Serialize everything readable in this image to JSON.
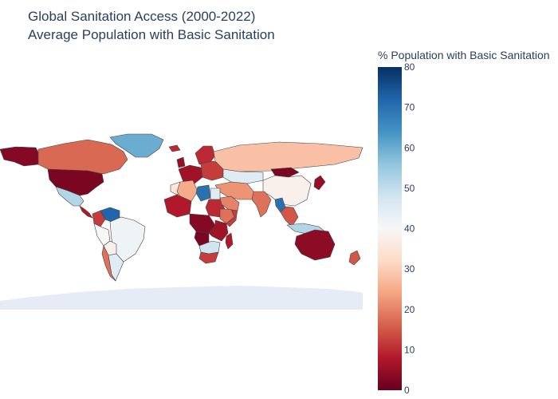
{
  "title": {
    "line1": "Global Sanitation Access (2000-2022)",
    "line2": "Average Population with Basic Sanitation"
  },
  "colorbar": {
    "title": "% Population with Basic Sanitation",
    "min": 0,
    "max": 80,
    "ticks": [
      0,
      10,
      20,
      30,
      40,
      50,
      60,
      70,
      80
    ],
    "colorscale": [
      "#67001f",
      "#b2182b",
      "#d6604d",
      "#f4a582",
      "#fddbc7",
      "#f7f7f7",
      "#d1e5f0",
      "#92c5de",
      "#4393c3",
      "#2166ac",
      "#053061"
    ]
  },
  "map": {
    "projection": "equirectangular",
    "land_color": "#e5ecf6",
    "border_color": "#444444"
  },
  "chart_data": {
    "type": "choropleth",
    "title": "Global Sanitation Access (2000-2022) Average Population with Basic Sanitation",
    "value_label": "% Population with Basic Sanitation",
    "zmin": 0,
    "zmax": 80,
    "regions": [
      {
        "name": "Alaska",
        "value": 3
      },
      {
        "name": "Canada",
        "value": 17
      },
      {
        "name": "United States",
        "value": 2
      },
      {
        "name": "Greenland",
        "value": 60
      },
      {
        "name": "Mexico",
        "value": 52
      },
      {
        "name": "Central America",
        "value": 8
      },
      {
        "name": "Venezuela",
        "value": 72
      },
      {
        "name": "Colombia",
        "value": 12
      },
      {
        "name": "Brazil",
        "value": 42
      },
      {
        "name": "Peru",
        "value": 40
      },
      {
        "name": "Bolivia",
        "value": 38
      },
      {
        "name": "Argentina",
        "value": 45
      },
      {
        "name": "Chile",
        "value": 18
      },
      {
        "name": "Iceland",
        "value": 10
      },
      {
        "name": "Scandinavia",
        "value": 10
      },
      {
        "name": "United Kingdom",
        "value": 5
      },
      {
        "name": "Western Europe",
        "value": 6
      },
      {
        "name": "Eastern Europe",
        "value": 12
      },
      {
        "name": "Russia",
        "value": 28
      },
      {
        "name": "Kazakhstan",
        "value": 45
      },
      {
        "name": "Mongolia",
        "value": 2
      },
      {
        "name": "China",
        "value": 38
      },
      {
        "name": "India",
        "value": 18
      },
      {
        "name": "Middle East",
        "value": 22
      },
      {
        "name": "Japan",
        "value": 5
      },
      {
        "name": "Southeast Asia",
        "value": 15
      },
      {
        "name": "Myanmar",
        "value": 70
      },
      {
        "name": "Indonesia",
        "value": 52
      },
      {
        "name": "Australia",
        "value": 4
      },
      {
        "name": "New Zealand",
        "value": 15
      },
      {
        "name": "Morocco",
        "value": 35
      },
      {
        "name": "Algeria",
        "value": 25
      },
      {
        "name": "Libya",
        "value": 70
      },
      {
        "name": "Egypt",
        "value": 45
      },
      {
        "name": "West Africa",
        "value": 8
      },
      {
        "name": "Sudan",
        "value": 10
      },
      {
        "name": "Ethiopia",
        "value": 18
      },
      {
        "name": "Somalia",
        "value": 12
      },
      {
        "name": "Central Africa",
        "value": 3
      },
      {
        "name": "East Africa",
        "value": 6
      },
      {
        "name": "Angola",
        "value": 2
      },
      {
        "name": "Southern Africa",
        "value": 48
      },
      {
        "name": "South Africa",
        "value": 12
      },
      {
        "name": "Madagascar",
        "value": 8
      },
      {
        "name": "Saudi Arabia",
        "value": 20
      }
    ]
  }
}
